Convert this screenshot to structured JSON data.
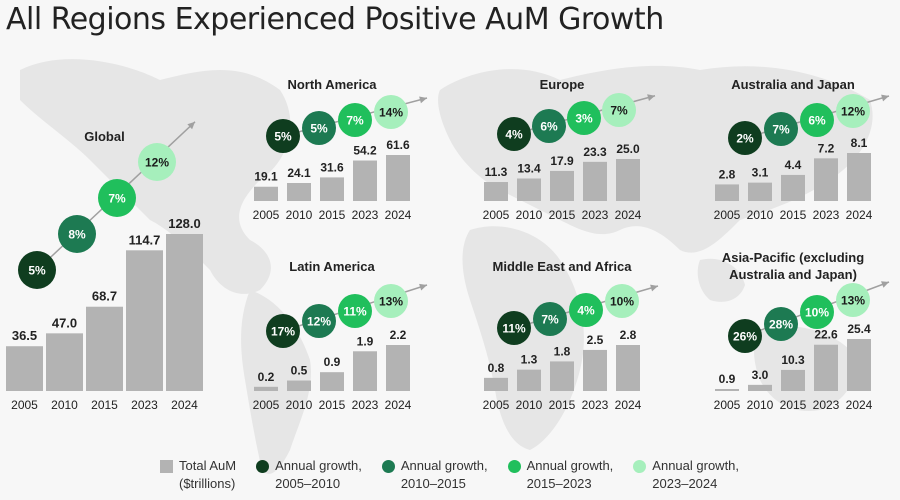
{
  "title": "All Regions Experienced Positive AuM Growth",
  "colors": {
    "bar": "#b3b3b3",
    "growth_2005_2010": "#0f3d1f",
    "growth_2010_2015": "#1d7a52",
    "growth_2015_2023": "#20bf5c",
    "growth_2023_2024": "#a6efbc",
    "arrow": "#a0a0a0"
  },
  "legend": [
    {
      "label_line1": "Total AuM",
      "label_line2": "($trillions)",
      "shape": "square",
      "color": "#b3b3b3"
    },
    {
      "label_line1": "Annual growth,",
      "label_line2": "2005–2010",
      "shape": "circle",
      "color": "#0f3d1f"
    },
    {
      "label_line1": "Annual growth,",
      "label_line2": "2010–2015",
      "shape": "circle",
      "color": "#1d7a52"
    },
    {
      "label_line1": "Annual growth,",
      "label_line2": "2015–2023",
      "shape": "circle",
      "color": "#20bf5c"
    },
    {
      "label_line1": "Annual growth,",
      "label_line2": "2023–2024",
      "shape": "circle",
      "color": "#a6efbc"
    }
  ],
  "chart_data": [
    {
      "type": "bar",
      "title": "Global",
      "title_lines": [
        "Global"
      ],
      "categories": [
        "2005",
        "2010",
        "2015",
        "2023",
        "2024"
      ],
      "values": [
        36.5,
        47.0,
        68.7,
        114.7,
        128.0
      ],
      "value_labels": [
        "36.5",
        "47.0",
        "68.7",
        "114.7",
        "128.0"
      ],
      "growth": [
        "5%",
        "8%",
        "7%",
        "12%"
      ],
      "unit": "$trillions"
    },
    {
      "type": "bar",
      "title": "North America",
      "title_lines": [
        "North America"
      ],
      "categories": [
        "2005",
        "2010",
        "2015",
        "2023",
        "2024"
      ],
      "values": [
        19.1,
        24.1,
        31.6,
        54.2,
        61.6
      ],
      "value_labels": [
        "19.1",
        "24.1",
        "31.6",
        "54.2",
        "61.6"
      ],
      "growth": [
        "5%",
        "5%",
        "7%",
        "14%"
      ],
      "unit": "$trillions"
    },
    {
      "type": "bar",
      "title": "Europe",
      "title_lines": [
        "Europe"
      ],
      "categories": [
        "2005",
        "2010",
        "2015",
        "2023",
        "2024"
      ],
      "values": [
        11.3,
        13.4,
        17.9,
        23.3,
        25.0
      ],
      "value_labels": [
        "11.3",
        "13.4",
        "17.9",
        "23.3",
        "25.0"
      ],
      "growth": [
        "4%",
        "6%",
        "3%",
        "7%"
      ],
      "unit": "$trillions"
    },
    {
      "type": "bar",
      "title": "Australia and Japan",
      "title_lines": [
        "Australia and Japan"
      ],
      "categories": [
        "2005",
        "2010",
        "2015",
        "2023",
        "2024"
      ],
      "values": [
        2.8,
        3.1,
        4.4,
        7.2,
        8.1
      ],
      "value_labels": [
        "2.8",
        "3.1",
        "4.4",
        "7.2",
        "8.1"
      ],
      "growth": [
        "2%",
        "7%",
        "6%",
        "12%"
      ],
      "unit": "$trillions"
    },
    {
      "type": "bar",
      "title": "Latin America",
      "title_lines": [
        "Latin America"
      ],
      "categories": [
        "2005",
        "2010",
        "2015",
        "2023",
        "2024"
      ],
      "values": [
        0.2,
        0.5,
        0.9,
        1.9,
        2.2
      ],
      "value_labels": [
        "0.2",
        "0.5",
        "0.9",
        "1.9",
        "2.2"
      ],
      "growth": [
        "17%",
        "12%",
        "11%",
        "13%"
      ],
      "unit": "$trillions"
    },
    {
      "type": "bar",
      "title": "Middle East and Africa",
      "title_lines": [
        "Middle East and Africa"
      ],
      "categories": [
        "2005",
        "2010",
        "2015",
        "2023",
        "2024"
      ],
      "values": [
        0.8,
        1.3,
        1.8,
        2.5,
        2.8
      ],
      "value_labels": [
        "0.8",
        "1.3",
        "1.8",
        "2.5",
        "2.8"
      ],
      "growth": [
        "11%",
        "7%",
        "4%",
        "10%"
      ],
      "unit": "$trillions"
    },
    {
      "type": "bar",
      "title": "Asia-Pacific (excluding Australia and Japan)",
      "title_lines": [
        "Asia-Pacific (excluding",
        "Australia and Japan)"
      ],
      "categories": [
        "2005",
        "2010",
        "2015",
        "2023",
        "2024"
      ],
      "values": [
        0.9,
        3.0,
        10.3,
        22.6,
        25.4
      ],
      "value_labels": [
        "0.9",
        "3.0",
        "10.3",
        "22.6",
        "25.4"
      ],
      "growth": [
        "26%",
        "28%",
        "10%",
        "13%"
      ],
      "unit": "$trillions"
    }
  ]
}
